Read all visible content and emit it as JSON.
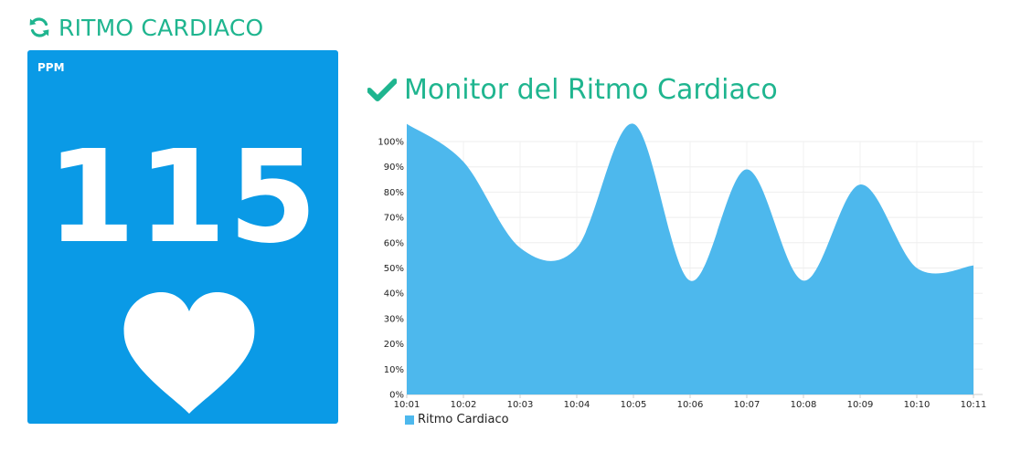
{
  "header": {
    "title": "RITMO CARDIACO",
    "icon": "refresh-icon",
    "accent_color": "#1fb58f"
  },
  "bpm_card": {
    "label": "PPM",
    "value": "115",
    "icon": "heart-icon",
    "background_color": "#0a9ae6"
  },
  "chart_panel": {
    "icon": "check-icon"
  },
  "chart_data": {
    "type": "area",
    "title": "Monitor del Ritmo Cardiaco",
    "xlabel": "",
    "ylabel": "",
    "y_tick_labels": [
      "0%",
      "10%",
      "20%",
      "30%",
      "40%",
      "50%",
      "60%",
      "70%",
      "80%",
      "90%",
      "100%"
    ],
    "ylim": [
      0,
      100
    ],
    "x_tick_labels": [
      "10:01",
      "10:02",
      "10:03",
      "10:04",
      "10:05",
      "10:06",
      "10:07",
      "10:08",
      "10:09",
      "10:10",
      "10:11"
    ],
    "grid": true,
    "legend_position": "bottom-left",
    "series": [
      {
        "name": "Ritmo Cardiaco",
        "color": "#4db8ed",
        "x": [
          "10:01",
          "10:02",
          "10:03",
          "10:04",
          "10:05",
          "10:06",
          "10:07",
          "10:08",
          "10:09",
          "10:10",
          "10:11"
        ],
        "values": [
          107,
          92,
          58,
          58,
          107,
          45,
          89,
          45,
          83,
          50,
          51
        ]
      }
    ]
  }
}
